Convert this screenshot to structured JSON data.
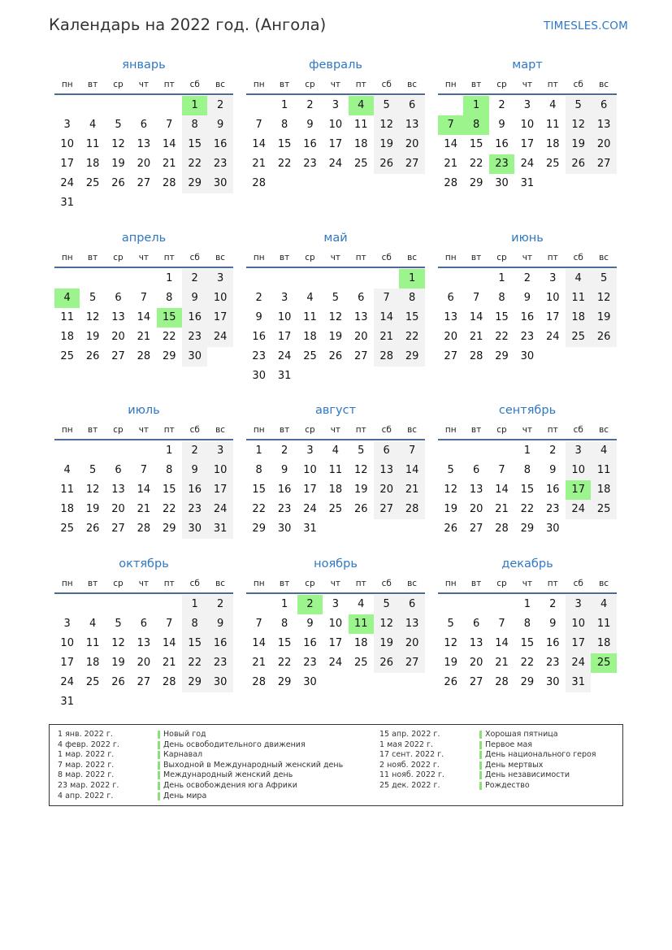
{
  "header": {
    "title": "Календарь на 2022 год. (Ангола)",
    "site": "TIMESLES.COM"
  },
  "weekdays": [
    "пн",
    "вт",
    "ср",
    "чт",
    "пт",
    "сб",
    "вс"
  ],
  "colors": {
    "accent": "#2f78c4",
    "holiday": "#9cf58c",
    "weekend": "#f2f2f2",
    "rule": "#4d6b97"
  },
  "months": [
    {
      "name": "январь",
      "first_weekday": 5,
      "days": 31,
      "holidays": [
        1
      ]
    },
    {
      "name": "февраль",
      "first_weekday": 1,
      "days": 28,
      "holidays": [
        4
      ]
    },
    {
      "name": "март",
      "first_weekday": 1,
      "days": 31,
      "holidays": [
        1,
        7,
        8,
        23
      ]
    },
    {
      "name": "апрель",
      "first_weekday": 4,
      "days": 30,
      "holidays": [
        4,
        15
      ]
    },
    {
      "name": "май",
      "first_weekday": 6,
      "days": 31,
      "holidays": [
        1
      ]
    },
    {
      "name": "июнь",
      "first_weekday": 2,
      "days": 30,
      "holidays": []
    },
    {
      "name": "июль",
      "first_weekday": 4,
      "days": 31,
      "holidays": []
    },
    {
      "name": "август",
      "first_weekday": 0,
      "days": 31,
      "holidays": []
    },
    {
      "name": "сентябрь",
      "first_weekday": 3,
      "days": 30,
      "holidays": [
        17
      ]
    },
    {
      "name": "октябрь",
      "first_weekday": 5,
      "days": 31,
      "holidays": []
    },
    {
      "name": "ноябрь",
      "first_weekday": 1,
      "days": 30,
      "holidays": [
        2,
        11
      ]
    },
    {
      "name": "декабрь",
      "first_weekday": 3,
      "days": 31,
      "holidays": [
        25
      ]
    }
  ],
  "holidays_list": [
    {
      "date": "1 янв. 2022 г.",
      "name": "Новый год"
    },
    {
      "date": "4 февр. 2022 г.",
      "name": "День освободительного движения"
    },
    {
      "date": "1 мар. 2022 г.",
      "name": "Карнавал"
    },
    {
      "date": "7 мар. 2022 г.",
      "name": "Выходной в Международный женский день"
    },
    {
      "date": "8 мар. 2022 г.",
      "name": "Международный женский день"
    },
    {
      "date": "23 мар. 2022 г.",
      "name": "День освобождения юга Африки"
    },
    {
      "date": "4 апр. 2022 г.",
      "name": "День мира"
    },
    {
      "date": "15 апр. 2022 г.",
      "name": "Хорошая пятница"
    },
    {
      "date": "1 мая 2022 г.",
      "name": "Первое мая"
    },
    {
      "date": "17 сент. 2022 г.",
      "name": "День национального героя"
    },
    {
      "date": "2 нояб. 2022 г.",
      "name": "День мертвых"
    },
    {
      "date": "11 нояб. 2022 г.",
      "name": "День независимости"
    },
    {
      "date": "25 дек. 2022 г.",
      "name": "Рождество"
    }
  ]
}
